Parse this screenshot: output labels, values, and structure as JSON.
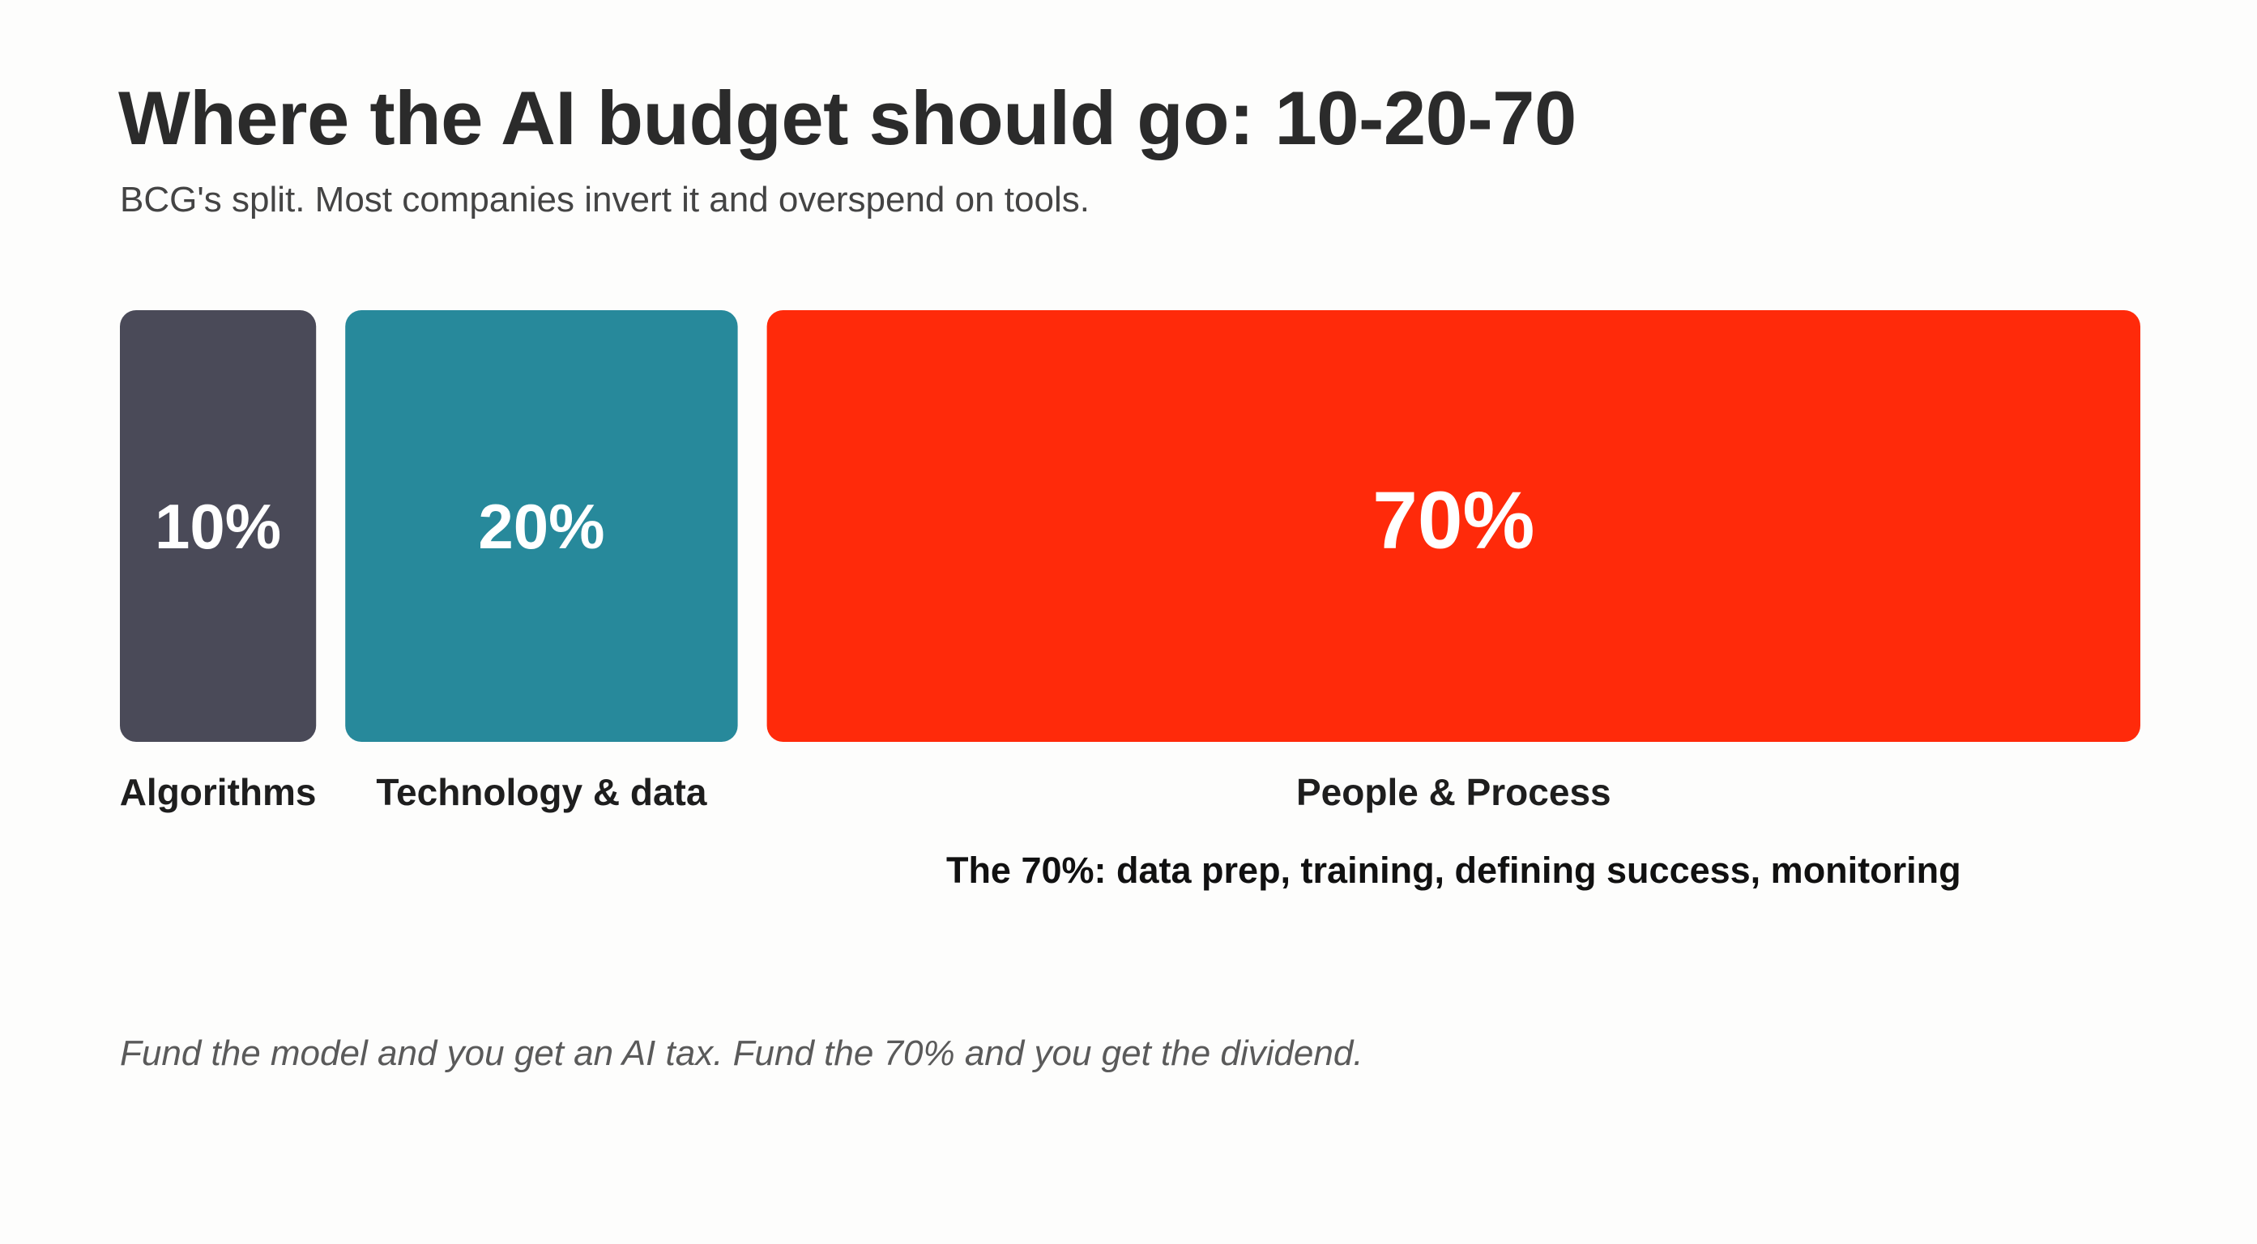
{
  "title": "Where the AI budget should go: 10-20-70",
  "subtitle": "BCG's split. Most companies invert it and overspend on tools.",
  "footer": "Fund the model and you get an AI tax. Fund the 70% and you get the dividend.",
  "chart_data": {
    "type": "bar",
    "orientation": "proportional-blocks",
    "categories": [
      "Algorithms",
      "Technology & data",
      "People & Process"
    ],
    "values": [
      10,
      20,
      70
    ],
    "value_labels": [
      "10%",
      "20%",
      "70%"
    ],
    "unit": "%",
    "colors": [
      "#4a4a58",
      "#27899b",
      "#ff2a0a"
    ],
    "annotation": "The 70%: data prep, training, defining success, monitoring",
    "grid": false,
    "legend": "none"
  }
}
